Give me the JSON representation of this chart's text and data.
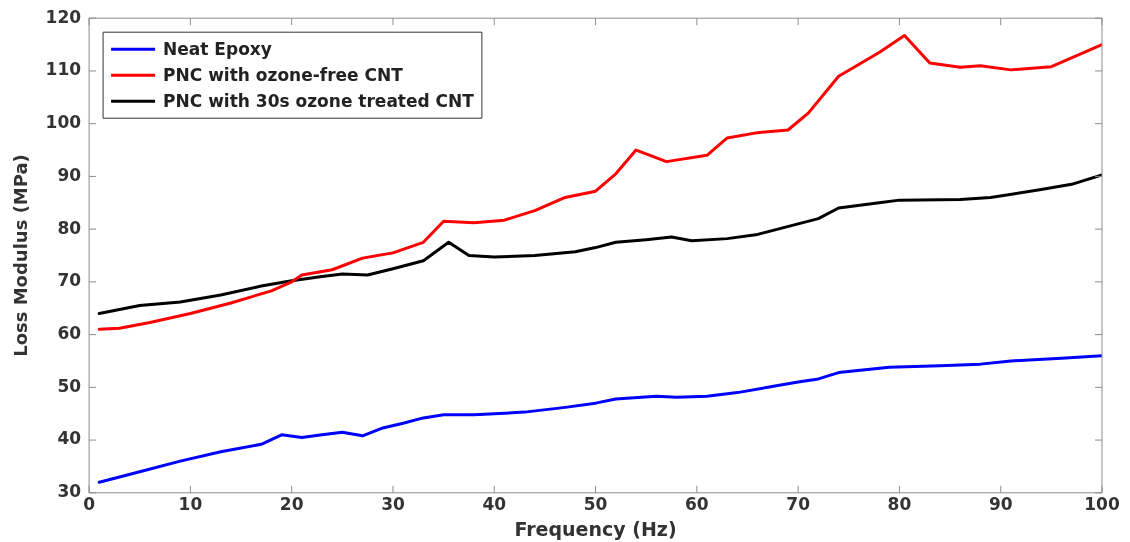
{
  "chart_data": {
    "type": "line",
    "xlabel": "Frequency (Hz)",
    "ylabel": "Loss Modulus (MPa)",
    "xlim": [
      0,
      100
    ],
    "xticks": [
      0,
      10,
      20,
      30,
      40,
      50,
      60,
      70,
      80,
      90,
      100
    ],
    "ylim": [
      30,
      120
    ],
    "yticks": [
      30,
      40,
      50,
      60,
      70,
      80,
      90,
      100,
      110,
      120
    ],
    "grid": false,
    "legend": "top left",
    "marker": "none",
    "line_style": "solid",
    "series": [
      {
        "name": "Neat Epoxy",
        "color": "#0000ff",
        "x": [
          1,
          5,
          9,
          13,
          17,
          19,
          21,
          23,
          25,
          27,
          29,
          31,
          33,
          35,
          38,
          43,
          47,
          50,
          52,
          56,
          58,
          61,
          64,
          67,
          70,
          72,
          74,
          79,
          84,
          88,
          91,
          96,
          100
        ],
        "values": [
          32,
          34,
          36,
          37.8,
          39.2,
          41,
          40.5,
          41,
          41.5,
          40.8,
          42.3,
          43.2,
          44.2,
          44.8,
          44.8,
          45.3,
          46.2,
          47,
          47.8,
          48.3,
          48.1,
          48.3,
          49,
          50,
          51,
          51.6,
          52.8,
          53.8,
          54.1,
          54.4,
          55,
          55.5,
          56
        ]
      },
      {
        "name": "PNC with ozone-free CNT",
        "color": "#ff0000",
        "x": [
          1,
          3,
          6,
          10,
          14,
          18,
          20,
          21,
          24,
          27,
          30,
          33,
          35,
          38,
          41,
          44,
          47,
          50,
          52,
          54,
          57,
          61,
          63,
          66,
          69,
          71,
          74,
          78,
          80.5,
          83,
          86,
          88,
          91,
          95,
          100
        ],
        "values": [
          61,
          61.2,
          62.3,
          64,
          66,
          68.3,
          70,
          71.3,
          72.3,
          74.5,
          75.5,
          77.5,
          81.5,
          81.2,
          81.7,
          83.5,
          86,
          87.2,
          90.5,
          95,
          92.8,
          94,
          97.3,
          98.3,
          98.8,
          102,
          109,
          113.5,
          116.7,
          111.5,
          110.7,
          111,
          110.2,
          110.8,
          115
        ]
      },
      {
        "name": "PNC with 30s ozone treated CNT",
        "color": "#000000",
        "x": [
          1,
          5,
          9,
          13,
          17,
          20,
          23,
          25,
          27.5,
          30,
          33,
          35.5,
          37.5,
          40,
          44,
          48,
          50,
          52,
          55,
          57.5,
          59.5,
          63,
          66,
          70,
          72,
          74,
          78,
          80,
          86,
          89,
          94,
          97,
          100
        ],
        "values": [
          64,
          65.5,
          66.2,
          67.5,
          69.2,
          70.2,
          71,
          71.5,
          71.3,
          72.5,
          74,
          77.5,
          75,
          74.7,
          75,
          75.7,
          76.5,
          77.5,
          78,
          78.5,
          77.8,
          78.2,
          79,
          81,
          82,
          84,
          85,
          85.5,
          85.6,
          86,
          87.5,
          88.5,
          90.3
        ]
      }
    ]
  }
}
